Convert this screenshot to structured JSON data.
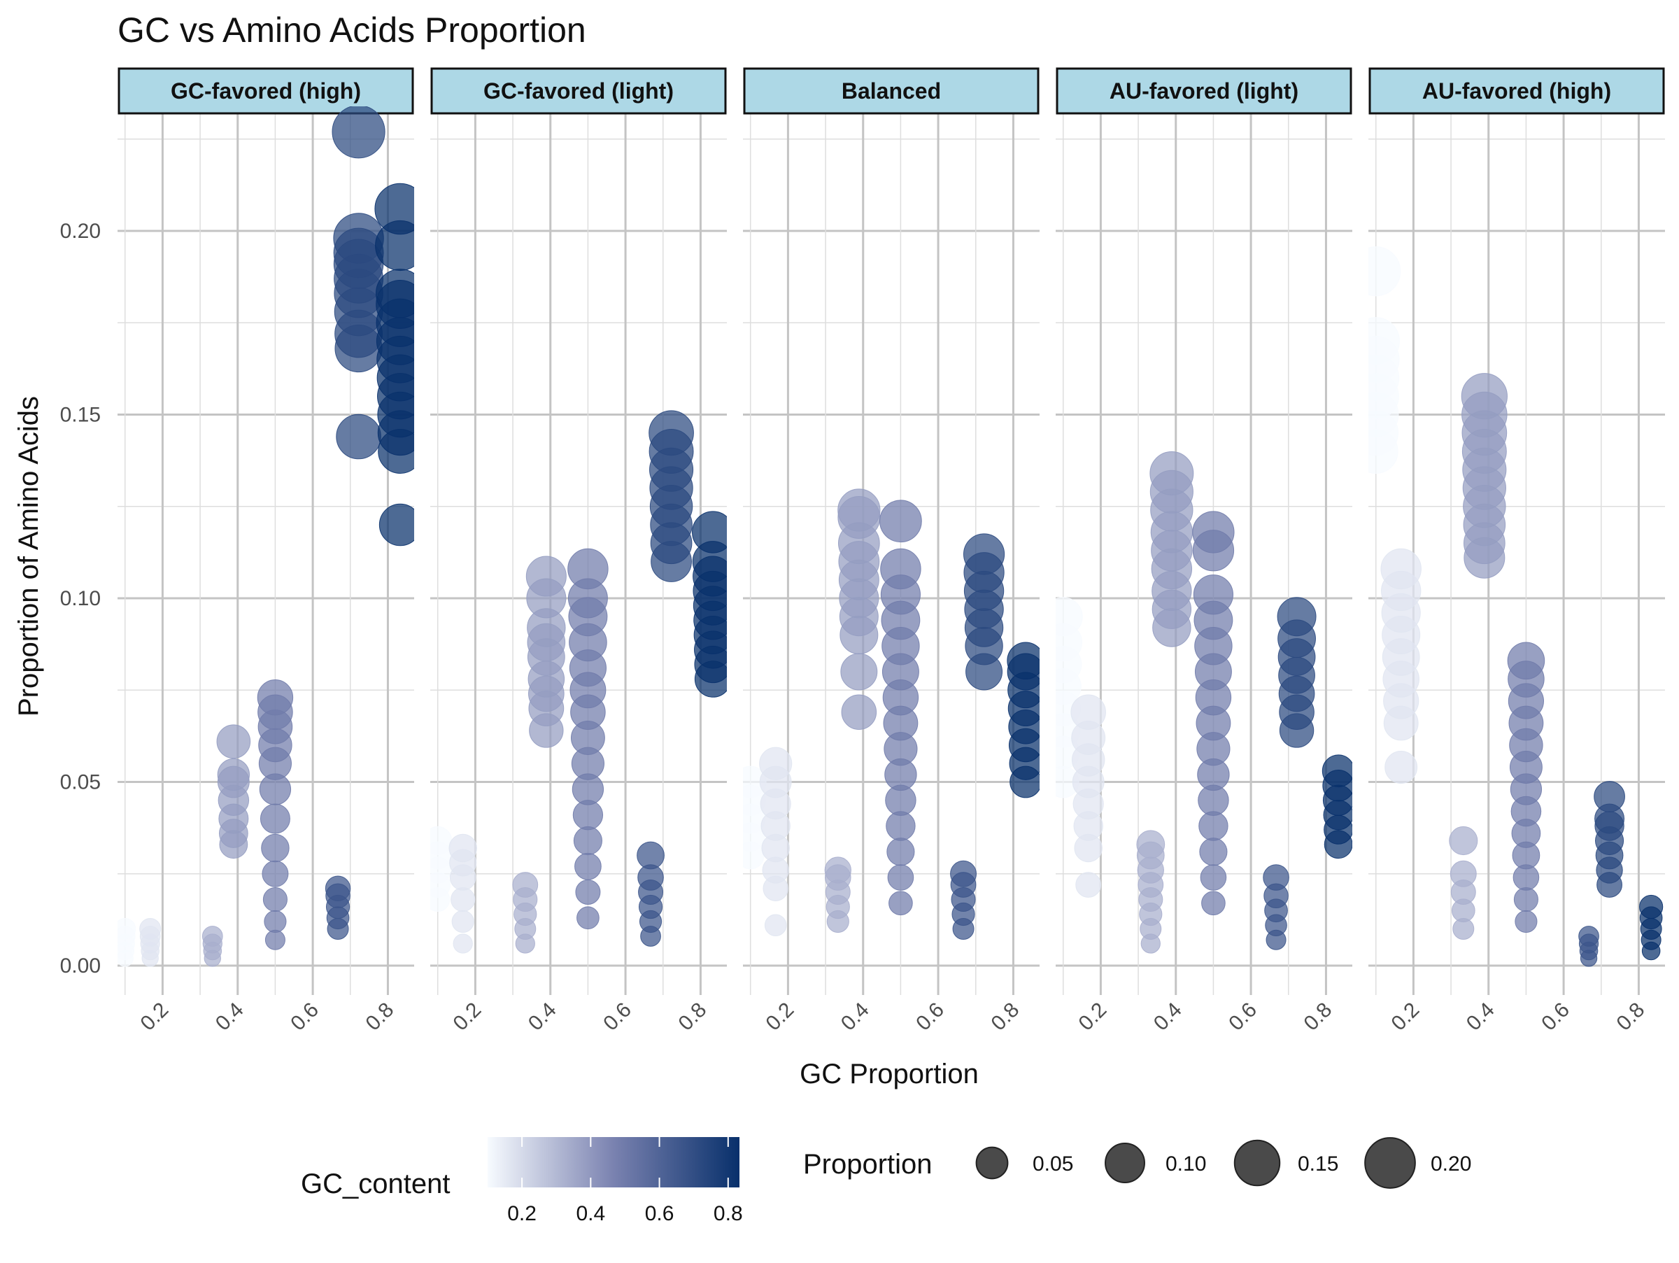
{
  "chart_data": {
    "type": "scatter",
    "title": "GC vs Amino Acids Proportion",
    "xlabel": "GC Proportion",
    "ylabel": "Proportion of Amino Acids",
    "xlim": [
      0.08,
      0.87
    ],
    "ylim": [
      -0.008,
      0.232
    ],
    "x_ticks": [
      "0.2",
      "0.4",
      "0.6",
      "0.8"
    ],
    "y_ticks": [
      "0.00",
      "0.05",
      "0.10",
      "0.15",
      "0.20"
    ],
    "grid": true,
    "legend_position": "bottom",
    "color_legend": {
      "title": "GC_content",
      "range": [
        0.1,
        0.833
      ],
      "low_color": "#F7FBFF",
      "mid_color": "#7A82B0",
      "high_color": "#08306B",
      "labels": [
        "0.2",
        "0.4",
        "0.6",
        "0.8"
      ]
    },
    "size_legend": {
      "title": "Proportion",
      "labels": [
        "0.05",
        "0.10",
        "0.15",
        "0.20"
      ]
    },
    "strip_color": "#ADD8E6",
    "facets": [
      {
        "name": "GC-favored (high)",
        "columns": [
          {
            "x": 0.1,
            "values": [
              0.002,
              0.004,
              0.006,
              0.008,
              0.01
            ]
          },
          {
            "x": 0.167,
            "values": [
              0.002,
              0.004,
              0.006,
              0.008,
              0.01
            ]
          },
          {
            "x": 0.333,
            "values": [
              0.002,
              0.004,
              0.006,
              0.008
            ]
          },
          {
            "x": 0.389,
            "values": [
              0.033,
              0.036,
              0.04,
              0.045,
              0.05,
              0.052,
              0.061
            ]
          },
          {
            "x": 0.5,
            "values": [
              0.007,
              0.012,
              0.018,
              0.025,
              0.032,
              0.04,
              0.048,
              0.055,
              0.06,
              0.065,
              0.069,
              0.073
            ]
          },
          {
            "x": 0.667,
            "values": [
              0.01,
              0.013,
              0.016,
              0.019,
              0.021
            ]
          },
          {
            "x": 0.722,
            "values": [
              0.144,
              0.168,
              0.172,
              0.178,
              0.183,
              0.187,
              0.191,
              0.194,
              0.198,
              0.227
            ]
          },
          {
            "x": 0.833,
            "values": [
              0.12,
              0.14,
              0.145,
              0.15,
              0.155,
              0.16,
              0.165,
              0.17,
              0.175,
              0.18,
              0.183,
              0.196,
              0.206
            ]
          }
        ]
      },
      {
        "name": "GC-favored (light)",
        "columns": [
          {
            "x": 0.1,
            "values": [
              0.018,
              0.022,
              0.026,
              0.03,
              0.034
            ]
          },
          {
            "x": 0.167,
            "values": [
              0.006,
              0.012,
              0.018,
              0.024,
              0.028,
              0.032
            ]
          },
          {
            "x": 0.333,
            "values": [
              0.006,
              0.01,
              0.014,
              0.018,
              0.022
            ]
          },
          {
            "x": 0.389,
            "values": [
              0.064,
              0.07,
              0.074,
              0.078,
              0.084,
              0.088,
              0.092,
              0.1,
              0.106
            ]
          },
          {
            "x": 0.5,
            "values": [
              0.013,
              0.02,
              0.027,
              0.034,
              0.041,
              0.048,
              0.055,
              0.062,
              0.069,
              0.075,
              0.081,
              0.088,
              0.095,
              0.1,
              0.108
            ]
          },
          {
            "x": 0.667,
            "values": [
              0.008,
              0.012,
              0.016,
              0.02,
              0.024,
              0.03
            ]
          },
          {
            "x": 0.722,
            "values": [
              0.11,
              0.115,
              0.12,
              0.125,
              0.13,
              0.135,
              0.14,
              0.145
            ]
          },
          {
            "x": 0.833,
            "values": [
              0.078,
              0.082,
              0.086,
              0.09,
              0.094,
              0.098,
              0.102,
              0.106,
              0.11,
              0.118
            ]
          }
        ]
      },
      {
        "name": "Balanced",
        "columns": [
          {
            "x": 0.1,
            "values": [
              0.03,
              0.035,
              0.04,
              0.045,
              0.05
            ]
          },
          {
            "x": 0.167,
            "values": [
              0.011,
              0.021,
              0.026,
              0.032,
              0.038,
              0.044,
              0.05,
              0.055
            ]
          },
          {
            "x": 0.333,
            "values": [
              0.012,
              0.016,
              0.02,
              0.024,
              0.026
            ]
          },
          {
            "x": 0.389,
            "values": [
              0.069,
              0.08,
              0.09,
              0.095,
              0.1,
              0.105,
              0.11,
              0.115,
              0.122,
              0.124
            ]
          },
          {
            "x": 0.5,
            "values": [
              0.017,
              0.024,
              0.031,
              0.038,
              0.045,
              0.052,
              0.059,
              0.066,
              0.073,
              0.08,
              0.087,
              0.094,
              0.101,
              0.108,
              0.121
            ]
          },
          {
            "x": 0.667,
            "values": [
              0.01,
              0.014,
              0.018,
              0.022,
              0.025
            ]
          },
          {
            "x": 0.722,
            "values": [
              0.08,
              0.087,
              0.092,
              0.097,
              0.102,
              0.107,
              0.112
            ]
          },
          {
            "x": 0.833,
            "values": [
              0.05,
              0.055,
              0.06,
              0.065,
              0.07,
              0.075,
              0.08,
              0.083
            ]
          }
        ]
      },
      {
        "name": "AU-favored (light)",
        "columns": [
          {
            "x": 0.1,
            "values": [
              0.05,
              0.058,
              0.064,
              0.07,
              0.076,
              0.082,
              0.088,
              0.095
            ]
          },
          {
            "x": 0.167,
            "values": [
              0.022,
              0.032,
              0.038,
              0.044,
              0.05,
              0.056,
              0.062,
              0.069
            ]
          },
          {
            "x": 0.333,
            "values": [
              0.006,
              0.01,
              0.014,
              0.018,
              0.022,
              0.026,
              0.03,
              0.033
            ]
          },
          {
            "x": 0.389,
            "values": [
              0.092,
              0.097,
              0.102,
              0.108,
              0.113,
              0.118,
              0.124,
              0.129,
              0.134
            ]
          },
          {
            "x": 0.5,
            "values": [
              0.017,
              0.024,
              0.031,
              0.038,
              0.045,
              0.052,
              0.059,
              0.066,
              0.073,
              0.08,
              0.087,
              0.094,
              0.101,
              0.113,
              0.118
            ]
          },
          {
            "x": 0.667,
            "values": [
              0.007,
              0.011,
              0.015,
              0.019,
              0.024
            ]
          },
          {
            "x": 0.722,
            "values": [
              0.064,
              0.069,
              0.074,
              0.079,
              0.084,
              0.089,
              0.095
            ]
          },
          {
            "x": 0.833,
            "values": [
              0.033,
              0.037,
              0.041,
              0.045,
              0.049,
              0.053
            ]
          }
        ]
      },
      {
        "name": "AU-favored (high)",
        "columns": [
          {
            "x": 0.1,
            "values": [
              0.14,
              0.145,
              0.15,
              0.155,
              0.16,
              0.165,
              0.17,
              0.189
            ]
          },
          {
            "x": 0.167,
            "values": [
              0.054,
              0.066,
              0.072,
              0.078,
              0.084,
              0.09,
              0.096,
              0.102,
              0.108
            ]
          },
          {
            "x": 0.333,
            "values": [
              0.01,
              0.015,
              0.02,
              0.025,
              0.034
            ]
          },
          {
            "x": 0.389,
            "values": [
              0.111,
              0.115,
              0.12,
              0.125,
              0.13,
              0.135,
              0.14,
              0.145,
              0.15,
              0.155
            ]
          },
          {
            "x": 0.5,
            "values": [
              0.012,
              0.018,
              0.024,
              0.03,
              0.036,
              0.042,
              0.048,
              0.054,
              0.06,
              0.066,
              0.072,
              0.078,
              0.083
            ]
          },
          {
            "x": 0.667,
            "values": [
              0.002,
              0.004,
              0.006,
              0.008
            ]
          },
          {
            "x": 0.722,
            "values": [
              0.022,
              0.026,
              0.03,
              0.034,
              0.038,
              0.04,
              0.046
            ]
          },
          {
            "x": 0.833,
            "values": [
              0.004,
              0.007,
              0.01,
              0.013,
              0.016
            ]
          }
        ]
      }
    ]
  }
}
